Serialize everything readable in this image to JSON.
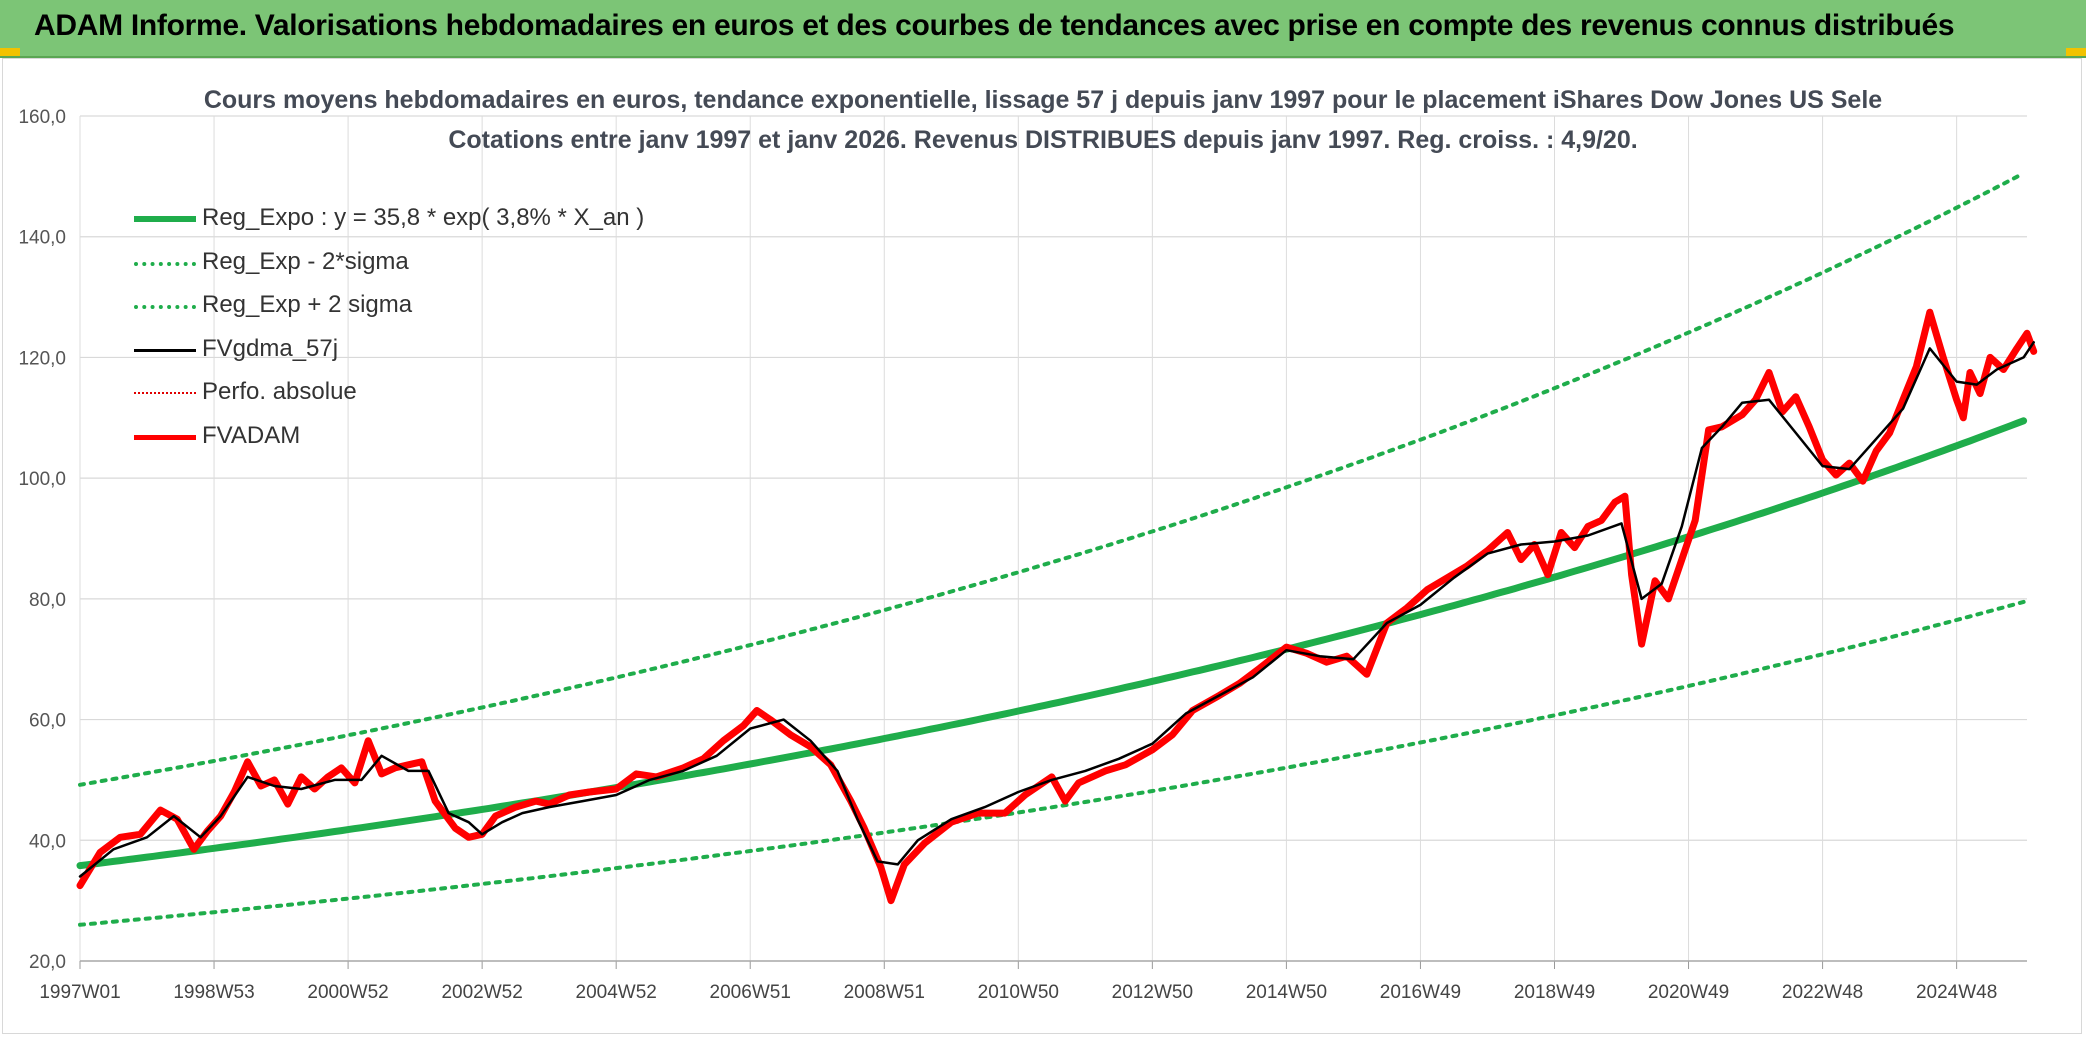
{
  "header": {
    "title": "ADAM Informe. Valorisations hebdomadaires en euros et des courbes de tendances avec prise en compte des revenus connus distribués"
  },
  "chart_data": {
    "type": "line",
    "title": "Cours moyens hebdomadaires en euros, tendance exponentielle, lissage 57 j depuis janv 1997 pour le placement iShares Dow Jones US Sele",
    "subtitle": "Cotations entre janv 1997 et janv 2026. Revenus DISTRIBUES depuis janv 1997. Reg. croiss. : 4,9/20.",
    "xlabel": "",
    "ylabel": "",
    "ylim": [
      20,
      160
    ],
    "xlim": [
      1997.0,
      2026.05
    ],
    "yticks": [
      "20,0",
      "40,0",
      "60,0",
      "80,0",
      "100,0",
      "120,0",
      "140,0",
      "160,0"
    ],
    "xticks": [
      {
        "label": "1997W01",
        "x": 1997.0
      },
      {
        "label": "1998W53",
        "x": 1999.0
      },
      {
        "label": "2000W52",
        "x": 2001.0
      },
      {
        "label": "2002W52",
        "x": 2003.0
      },
      {
        "label": "2004W52",
        "x": 2005.0
      },
      {
        "label": "2006W51",
        "x": 2007.0
      },
      {
        "label": "2008W51",
        "x": 2009.0
      },
      {
        "label": "2010W50",
        "x": 2011.0
      },
      {
        "label": "2012W50",
        "x": 2013.0
      },
      {
        "label": "2014W50",
        "x": 2015.0
      },
      {
        "label": "2016W49",
        "x": 2017.0
      },
      {
        "label": "2018W49",
        "x": 2019.0
      },
      {
        "label": "2020W49",
        "x": 2021.0
      },
      {
        "label": "2022W48",
        "x": 2023.0
      },
      {
        "label": "2024W48",
        "x": 2025.0
      }
    ],
    "grid": true,
    "legend_position": "top-left",
    "series": [
      {
        "name": "Reg_Expo : y = 35,8 * exp( 3,8% *  X_an )",
        "color": "#1fad4b",
        "style": "solid-thick",
        "x": [
          1997.0,
          2000.0,
          2003.0,
          2006.0,
          2009.0,
          2012.0,
          2015.0,
          2018.0,
          2021.0,
          2024.0,
          2026.0
        ],
        "values": [
          35.8,
          40.1,
          44.9,
          50.2,
          56.3,
          63.0,
          70.6,
          79.0,
          88.5,
          99.1,
          109.5
        ]
      },
      {
        "name": "Reg_Exp - 2*sigma",
        "color": "#1fad4b",
        "style": "dotted",
        "x": [
          1997.0,
          2000.0,
          2003.0,
          2006.0,
          2009.0,
          2012.0,
          2015.0,
          2018.0,
          2021.0,
          2024.0,
          2026.0
        ],
        "values": [
          26.0,
          29.1,
          32.6,
          36.5,
          40.9,
          45.8,
          51.3,
          57.4,
          64.3,
          72.0,
          79.5
        ]
      },
      {
        "name": "Reg_Exp + 2 sigma",
        "color": "#1fad4b",
        "style": "dotted",
        "x": [
          1997.0,
          2000.0,
          2003.0,
          2006.0,
          2009.0,
          2012.0,
          2015.0,
          2018.0,
          2021.0,
          2024.0,
          2026.0
        ],
        "values": [
          49.2,
          55.1,
          61.7,
          69.1,
          77.4,
          86.6,
          97.0,
          108.6,
          121.6,
          136.2,
          150.5
        ]
      },
      {
        "name": "FVgdma_57j",
        "color": "#000000",
        "style": "solid",
        "x": [
          1997.0,
          1997.5,
          1998.0,
          1998.4,
          1998.8,
          1999.1,
          1999.5,
          1999.9,
          2000.3,
          2000.8,
          2001.2,
          2001.5,
          2001.9,
          2002.2,
          2002.5,
          2002.8,
          2003.0,
          2003.3,
          2003.6,
          2004.0,
          2004.5,
          2005.0,
          2005.5,
          2006.0,
          2006.5,
          2007.0,
          2007.5,
          2007.9,
          2008.3,
          2008.6,
          2008.9,
          2009.2,
          2009.5,
          2010.0,
          2010.5,
          2011.0,
          2011.5,
          2012.0,
          2012.5,
          2013.0,
          2013.5,
          2014.0,
          2014.5,
          2015.0,
          2015.5,
          2016.0,
          2016.5,
          2017.0,
          2017.5,
          2018.0,
          2018.5,
          2019.0,
          2019.5,
          2020.0,
          2020.3,
          2020.6,
          2020.9,
          2021.2,
          2021.5,
          2021.8,
          2022.2,
          2022.6,
          2023.0,
          2023.4,
          2023.8,
          2024.2,
          2024.6,
          2025.0,
          2025.3,
          2025.6,
          2026.0,
          2026.15
        ],
        "values": [
          34.0,
          38.5,
          40.5,
          44.0,
          40.5,
          44.0,
          50.5,
          49.0,
          48.5,
          50.0,
          50.0,
          54.0,
          51.5,
          51.5,
          44.5,
          43.0,
          41.0,
          43.0,
          44.5,
          45.5,
          46.5,
          47.5,
          50.0,
          51.5,
          54.0,
          58.5,
          60.0,
          56.5,
          51.5,
          43.5,
          36.5,
          36.0,
          40.0,
          43.5,
          45.5,
          48.0,
          50.0,
          51.5,
          53.5,
          56.0,
          61.0,
          64.0,
          67.0,
          71.5,
          70.5,
          70.0,
          76.0,
          79.0,
          83.5,
          87.5,
          89.0,
          89.5,
          90.5,
          92.5,
          80.0,
          82.5,
          92.0,
          105.0,
          108.5,
          112.5,
          113.0,
          107.5,
          102.0,
          101.5,
          106.5,
          111.5,
          121.5,
          116.0,
          115.5,
          118.0,
          120.0,
          122.5
        ]
      },
      {
        "name": "Perfo. absolue",
        "color": "#e00000",
        "style": "dotted-thin",
        "x": [],
        "values": []
      },
      {
        "name": "FVADAM",
        "color": "#ff0000",
        "style": "solid-thick",
        "x": [
          1997.0,
          1997.3,
          1997.6,
          1997.9,
          1998.2,
          1998.45,
          1998.7,
          1998.9,
          1999.1,
          1999.3,
          1999.5,
          1999.7,
          1999.9,
          2000.1,
          2000.3,
          2000.5,
          2000.7,
          2000.9,
          2001.1,
          2001.3,
          2001.5,
          2001.7,
          2001.9,
          2002.1,
          2002.3,
          2002.5,
          2002.6,
          2002.8,
          2003.0,
          2003.2,
          2003.5,
          2003.8,
          2004.0,
          2004.3,
          2004.6,
          2005.0,
          2005.3,
          2005.6,
          2006.0,
          2006.3,
          2006.6,
          2006.9,
          2007.1,
          2007.3,
          2007.6,
          2007.9,
          2008.2,
          2008.5,
          2008.7,
          2008.95,
          2009.1,
          2009.3,
          2009.6,
          2010.0,
          2010.4,
          2010.8,
          2011.1,
          2011.5,
          2011.7,
          2011.9,
          2012.3,
          2012.6,
          2013.0,
          2013.3,
          2013.6,
          2014.0,
          2014.3,
          2014.6,
          2015.0,
          2015.3,
          2015.6,
          2015.9,
          2016.2,
          2016.5,
          2016.8,
          2017.1,
          2017.4,
          2017.7,
          2018.0,
          2018.3,
          2018.5,
          2018.7,
          2018.9,
          2019.1,
          2019.3,
          2019.5,
          2019.7,
          2019.9,
          2020.05,
          2020.15,
          2020.3,
          2020.5,
          2020.7,
          2020.9,
          2021.1,
          2021.3,
          2021.5,
          2021.8,
          2022.0,
          2022.2,
          2022.4,
          2022.6,
          2022.8,
          2023.0,
          2023.2,
          2023.4,
          2023.6,
          2023.8,
          2024.0,
          2024.2,
          2024.4,
          2024.6,
          2024.8,
          2025.0,
          2025.1,
          2025.2,
          2025.35,
          2025.5,
          2025.7,
          2025.9,
          2026.05,
          2026.15
        ],
        "values": [
          32.5,
          38.0,
          40.5,
          41.0,
          45.0,
          43.5,
          38.5,
          41.5,
          44.0,
          48.0,
          53.0,
          49.0,
          50.0,
          46.0,
          50.5,
          48.5,
          50.5,
          52.0,
          49.5,
          56.5,
          51.0,
          52.0,
          52.5,
          53.0,
          46.5,
          43.5,
          42.0,
          40.5,
          41.0,
          44.0,
          45.5,
          46.5,
          46.0,
          47.5,
          48.0,
          48.5,
          51.0,
          50.5,
          52.0,
          53.5,
          56.5,
          59.0,
          61.5,
          60.0,
          57.5,
          55.5,
          52.5,
          46.5,
          42.0,
          35.5,
          30.0,
          36.0,
          39.5,
          43.0,
          44.5,
          44.5,
          47.5,
          50.5,
          46.5,
          49.5,
          51.5,
          52.5,
          55.0,
          57.5,
          61.5,
          64.0,
          66.0,
          68.5,
          72.0,
          71.0,
          69.5,
          70.5,
          67.5,
          76.0,
          78.5,
          81.5,
          83.5,
          85.5,
          88.0,
          91.0,
          86.5,
          89.0,
          84.0,
          91.0,
          88.5,
          92.0,
          93.0,
          96.0,
          97.0,
          84.0,
          72.5,
          83.0,
          80.0,
          86.5,
          93.0,
          108.0,
          108.5,
          110.5,
          113.0,
          117.5,
          111.0,
          113.5,
          108.5,
          103.0,
          100.5,
          102.5,
          99.5,
          104.5,
          107.5,
          113.0,
          118.5,
          127.5,
          120.0,
          113.0,
          110.0,
          117.5,
          114.0,
          120.0,
          118.0,
          121.5,
          124.0,
          121.0
        ]
      }
    ]
  }
}
